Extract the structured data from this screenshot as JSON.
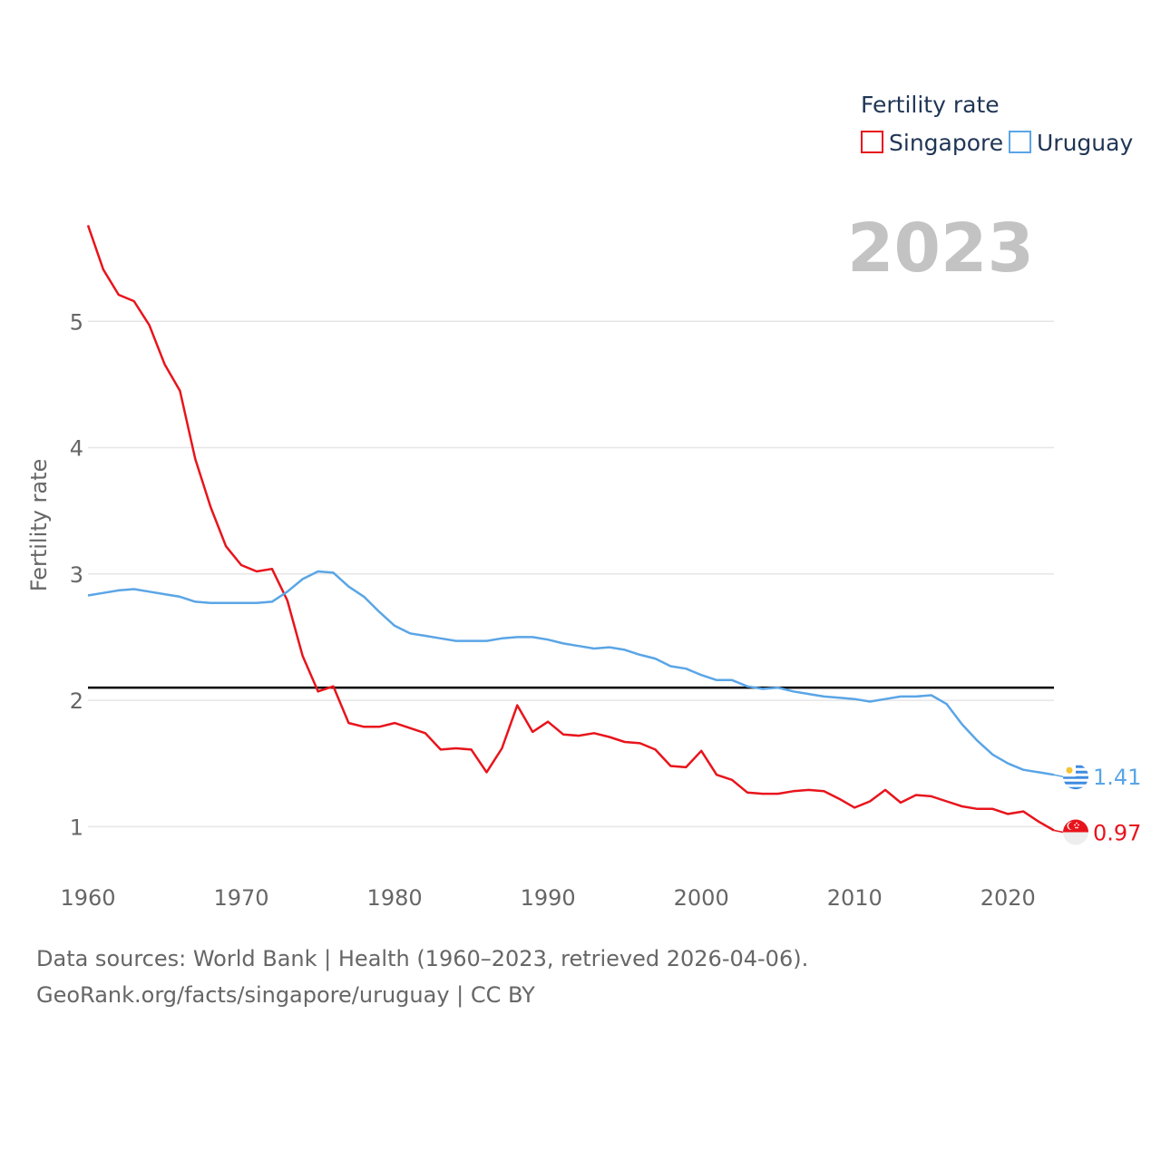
{
  "chart_data": {
    "type": "line",
    "title": "2023",
    "ylabel": "Fertility rate",
    "xlabel": "",
    "legend_title": "Fertility rate",
    "legend_position": "top-right",
    "xlim": [
      1960,
      2023
    ],
    "ylim": [
      0.55,
      6.0
    ],
    "x_ticks": [
      1960,
      1970,
      1980,
      1990,
      2000,
      2010,
      2020
    ],
    "y_ticks": [
      1,
      2,
      3,
      4,
      5
    ],
    "reference_line": {
      "y": 2.1,
      "color": "#000000"
    },
    "x": [
      1960,
      1961,
      1962,
      1963,
      1964,
      1965,
      1966,
      1967,
      1968,
      1969,
      1970,
      1971,
      1972,
      1973,
      1974,
      1975,
      1976,
      1977,
      1978,
      1979,
      1980,
      1981,
      1982,
      1983,
      1984,
      1985,
      1986,
      1987,
      1988,
      1989,
      1990,
      1991,
      1992,
      1993,
      1994,
      1995,
      1996,
      1997,
      1998,
      1999,
      2000,
      2001,
      2002,
      2003,
      2004,
      2005,
      2006,
      2007,
      2008,
      2009,
      2010,
      2011,
      2012,
      2013,
      2014,
      2015,
      2016,
      2017,
      2018,
      2019,
      2020,
      2021,
      2022,
      2023
    ],
    "series": [
      {
        "name": "Singapore",
        "color": "#e8141c",
        "end_label": "0.97",
        "values": [
          5.76,
          5.41,
          5.21,
          5.16,
          4.97,
          4.66,
          4.45,
          3.91,
          3.53,
          3.22,
          3.07,
          3.02,
          3.04,
          2.79,
          2.35,
          2.07,
          2.11,
          1.82,
          1.79,
          1.79,
          1.82,
          1.78,
          1.74,
          1.61,
          1.62,
          1.61,
          1.43,
          1.62,
          1.96,
          1.75,
          1.83,
          1.73,
          1.72,
          1.74,
          1.71,
          1.67,
          1.66,
          1.61,
          1.48,
          1.47,
          1.6,
          1.41,
          1.37,
          1.27,
          1.26,
          1.26,
          1.28,
          1.29,
          1.28,
          1.22,
          1.15,
          1.2,
          1.29,
          1.19,
          1.25,
          1.24,
          1.2,
          1.16,
          1.14,
          1.14,
          1.1,
          1.12,
          1.04,
          0.97
        ]
      },
      {
        "name": "Uruguay",
        "color": "#5aa5e6",
        "end_label": "1.41",
        "values": [
          2.83,
          2.85,
          2.87,
          2.88,
          2.86,
          2.84,
          2.82,
          2.78,
          2.77,
          2.77,
          2.77,
          2.77,
          2.78,
          2.86,
          2.96,
          3.02,
          3.01,
          2.9,
          2.82,
          2.7,
          2.59,
          2.53,
          2.51,
          2.49,
          2.47,
          2.47,
          2.47,
          2.49,
          2.5,
          2.5,
          2.48,
          2.45,
          2.43,
          2.41,
          2.42,
          2.4,
          2.36,
          2.33,
          2.27,
          2.25,
          2.2,
          2.16,
          2.16,
          2.11,
          2.09,
          2.1,
          2.07,
          2.05,
          2.03,
          2.02,
          2.01,
          1.99,
          2.01,
          2.03,
          2.03,
          2.04,
          1.97,
          1.81,
          1.68,
          1.57,
          1.5,
          1.45,
          1.43,
          1.41
        ]
      }
    ]
  },
  "footer": {
    "line1": "Data sources: World Bank | Health (1960–2023, retrieved 2026-04-06).",
    "line2": "GeoRank.org/facts/singapore/uruguay | CC BY"
  }
}
